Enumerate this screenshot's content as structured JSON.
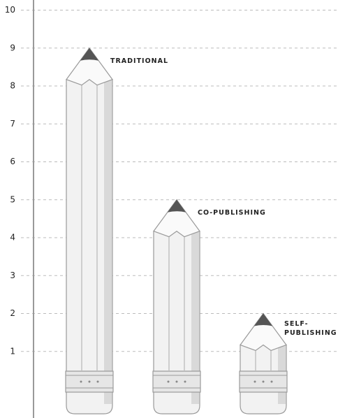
{
  "chart_data": {
    "type": "pencil-bar",
    "categories": [
      "TRADITIONAL",
      "CO-PUBLISHING",
      "SELF-PUBLISHING"
    ],
    "values": [
      9,
      5,
      2
    ],
    "ylim": [
      0,
      10
    ],
    "yticks": [
      1,
      2,
      3,
      4,
      5,
      6,
      7,
      8,
      9,
      10
    ],
    "grid": true
  }
}
